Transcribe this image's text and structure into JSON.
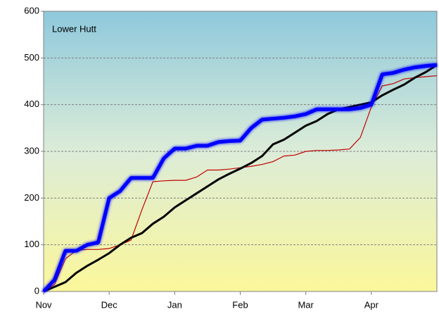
{
  "chart_data": {
    "type": "line",
    "annotation": "Lower Hutt",
    "categories": [
      "Nov",
      null,
      null,
      null,
      null,
      null,
      "Dec",
      null,
      null,
      null,
      null,
      null,
      "Jan",
      null,
      null,
      null,
      null,
      null,
      "Feb",
      null,
      null,
      null,
      null,
      null,
      "Mar",
      null,
      null,
      null,
      null,
      null,
      "Apr",
      null,
      null,
      null,
      null,
      null,
      null
    ],
    "series": [
      {
        "color": "#0000ff",
        "width": 5,
        "glow": true,
        "values": [
          0,
          25,
          87,
          87,
          100,
          105,
          200,
          215,
          243,
          243,
          243,
          285,
          306,
          306,
          312,
          312,
          320,
          322,
          323,
          350,
          368,
          370,
          372,
          375,
          380,
          390,
          390,
          390,
          390,
          393,
          400,
          465,
          468,
          475,
          480,
          483,
          485
        ]
      },
      {
        "color": "#000000",
        "width": 3,
        "glow": false,
        "values": [
          0,
          10,
          20,
          40,
          55,
          68,
          82,
          100,
          115,
          125,
          145,
          160,
          180,
          195,
          210,
          225,
          240,
          252,
          263,
          275,
          290,
          315,
          325,
          340,
          355,
          365,
          380,
          390,
          395,
          400,
          405,
          420,
          432,
          443,
          458,
          470,
          485
        ]
      },
      {
        "color": "#c00000",
        "width": 1.2,
        "glow": false,
        "values": [
          0,
          15,
          70,
          88,
          90,
          90,
          92,
          100,
          110,
          175,
          235,
          237,
          238,
          238,
          245,
          260,
          260,
          262,
          265,
          268,
          272,
          278,
          290,
          292,
          300,
          302,
          302,
          303,
          305,
          330,
          395,
          440,
          445,
          455,
          458,
          460,
          462
        ]
      }
    ],
    "ylim": [
      0,
      600
    ],
    "yticks": [
      0,
      100,
      200,
      300,
      400,
      500,
      600
    ],
    "grid": true
  }
}
